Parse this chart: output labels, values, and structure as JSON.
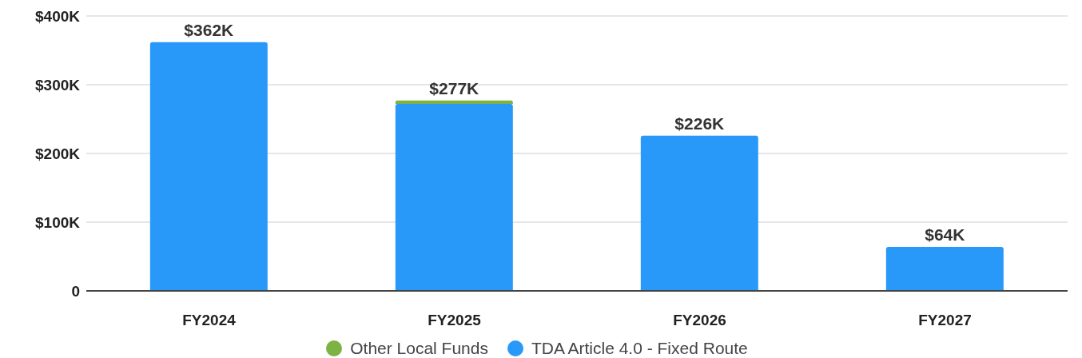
{
  "chart_data": {
    "type": "bar",
    "stacked": true,
    "categories": [
      "FY2024",
      "FY2025",
      "FY2026",
      "FY2027"
    ],
    "series": [
      {
        "name": "TDA Article 4.0 - Fixed Route",
        "color": "#2899f9",
        "values": [
          362,
          272,
          226,
          64
        ]
      },
      {
        "name": "Other Local Funds",
        "color": "#7cb342",
        "values": [
          0,
          5,
          0,
          0
        ]
      }
    ],
    "totals": [
      "$362K",
      "$277K",
      "$226K",
      "$64K"
    ],
    "ylim": [
      0,
      400
    ],
    "yticks": [
      0,
      {
        "value": 100,
        "label": "$100K"
      },
      {
        "value": 200,
        "label": "$200K"
      },
      {
        "value": 300,
        "label": "$300K"
      },
      {
        "value": 400,
        "label": "$400K"
      }
    ],
    "grid": "y",
    "legend": "bottom"
  }
}
